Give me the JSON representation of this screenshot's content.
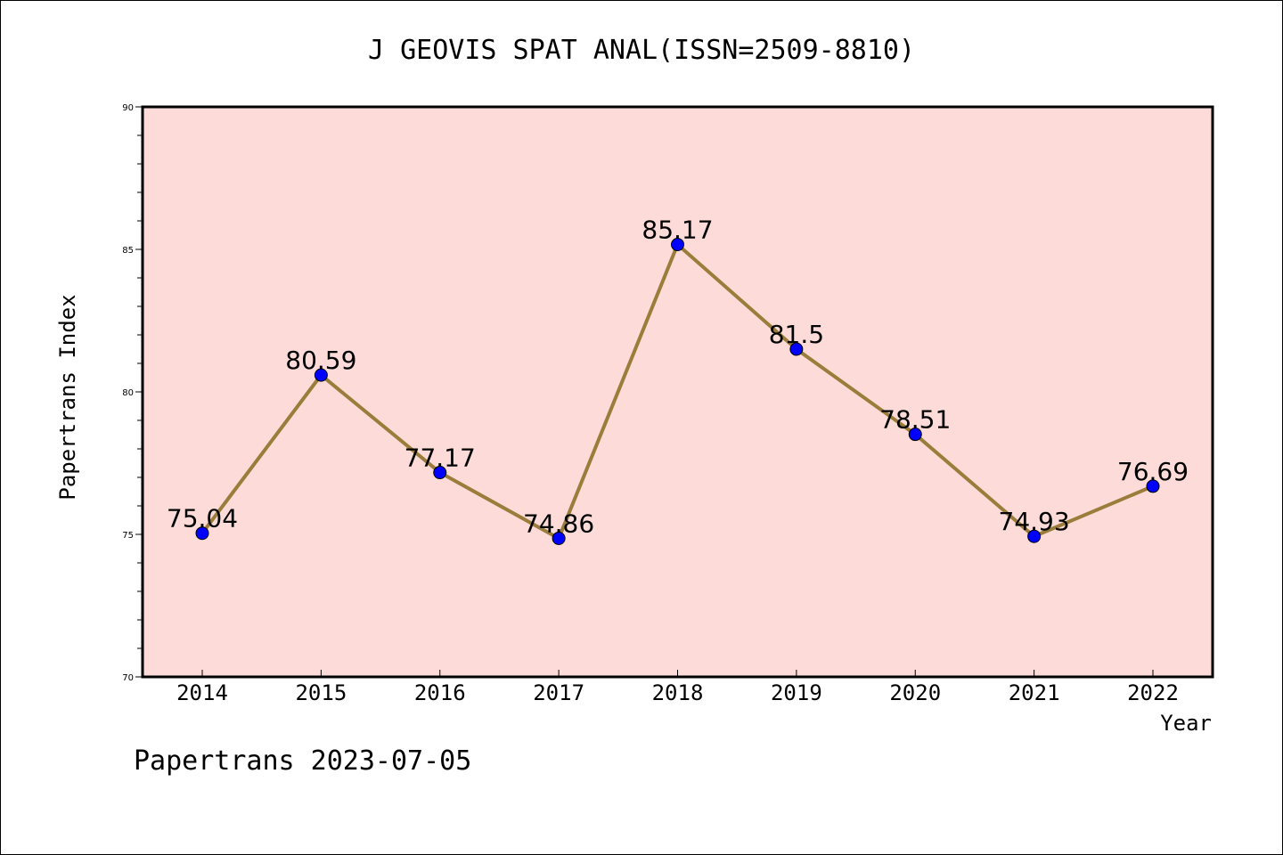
{
  "chart_data": {
    "type": "line",
    "title": "J GEOVIS SPAT ANAL(ISSN=2509-8810)",
    "xlabel": "Year",
    "ylabel": "Papertrans Index",
    "categories": [
      "2014",
      "2015",
      "2016",
      "2017",
      "2018",
      "2019",
      "2020",
      "2021",
      "2022"
    ],
    "series": [
      {
        "values": [
          75.04,
          80.59,
          77.17,
          74.86,
          85.17,
          81.5,
          78.51,
          74.93,
          76.69
        ],
        "labels": [
          "75.04",
          "80.59",
          "77.17",
          "74.86",
          "85.17",
          "81.5",
          "78.51",
          "74.93",
          "76.69"
        ],
        "line_color": "#9a7d3a",
        "marker_color": "#0000ff"
      }
    ],
    "ylim": [
      70,
      90
    ],
    "yticks": [
      "70",
      "75",
      "80",
      "85",
      "90"
    ],
    "grid": false,
    "plot_background": "#fddbd8",
    "footer": "Papertrans 2023-07-05"
  }
}
